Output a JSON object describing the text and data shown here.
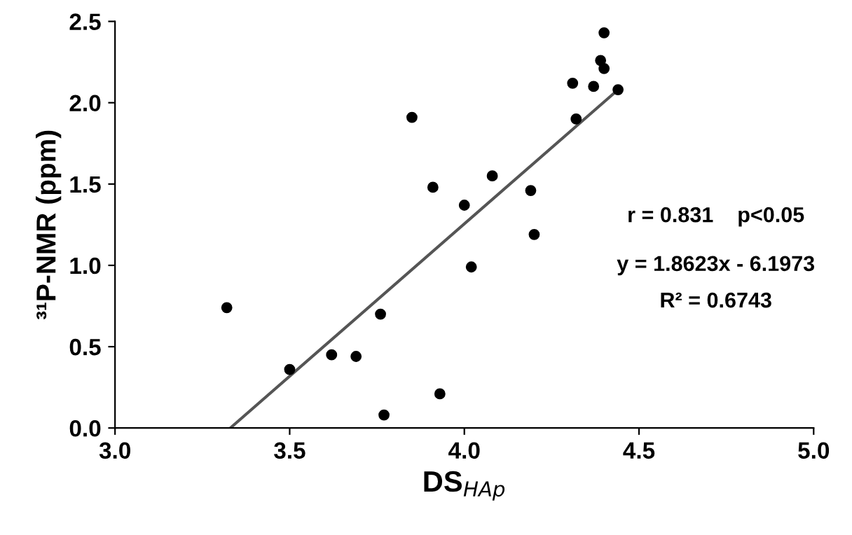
{
  "chart_data": {
    "type": "scatter",
    "xlabel": "DS$_{HAp}$",
    "ylabel": "³¹P-NMR (ppm)",
    "xlim": [
      3.0,
      5.0
    ],
    "xticks": [
      {
        "value": 3.0,
        "label": "3.0"
      },
      {
        "value": 3.5,
        "label": "3.5"
      },
      {
        "value": 4.0,
        "label": "4.0"
      },
      {
        "value": 4.5,
        "label": "4.5"
      },
      {
        "value": 5.0,
        "label": "5.0"
      }
    ],
    "ylim": [
      0,
      2.5
    ],
    "yticks": [
      {
        "value": 0,
        "label": "0.0"
      },
      {
        "value": 0.5,
        "label": "0.5"
      },
      {
        "value": 1.0,
        "label": "1.0"
      },
      {
        "value": 1.5,
        "label": "1.5"
      },
      {
        "value": 2.0,
        "label": "2.0"
      },
      {
        "value": 2.5,
        "label": "2.5"
      }
    ],
    "grid": false,
    "series": [
      {
        "marker": "circle",
        "color": "#000000",
        "x": [
          3.32,
          3.5,
          3.62,
          3.69,
          3.76,
          3.77,
          3.85,
          3.91,
          3.93,
          4.0,
          4.02,
          4.08,
          4.19,
          4.2,
          4.31,
          4.32,
          4.37,
          4.39,
          4.4,
          4.4,
          4.44
        ],
        "values": [
          0.74,
          0.36,
          0.45,
          0.44,
          0.7,
          0.08,
          1.91,
          1.48,
          0.21,
          1.37,
          0.99,
          1.55,
          1.46,
          1.19,
          2.12,
          1.9,
          2.1,
          2.26,
          2.21,
          2.43,
          2.08
        ]
      },
      {
        "type": "line",
        "marker": "none",
        "color": "#555555",
        "x": [
          3.33,
          4.44
        ],
        "values": [
          0,
          2.08
        ]
      }
    ],
    "annotations": [
      "r = 0.831    p<0.05",
      "y = 1.8623x - 6.1973",
      "R² = 0.6743"
    ]
  }
}
